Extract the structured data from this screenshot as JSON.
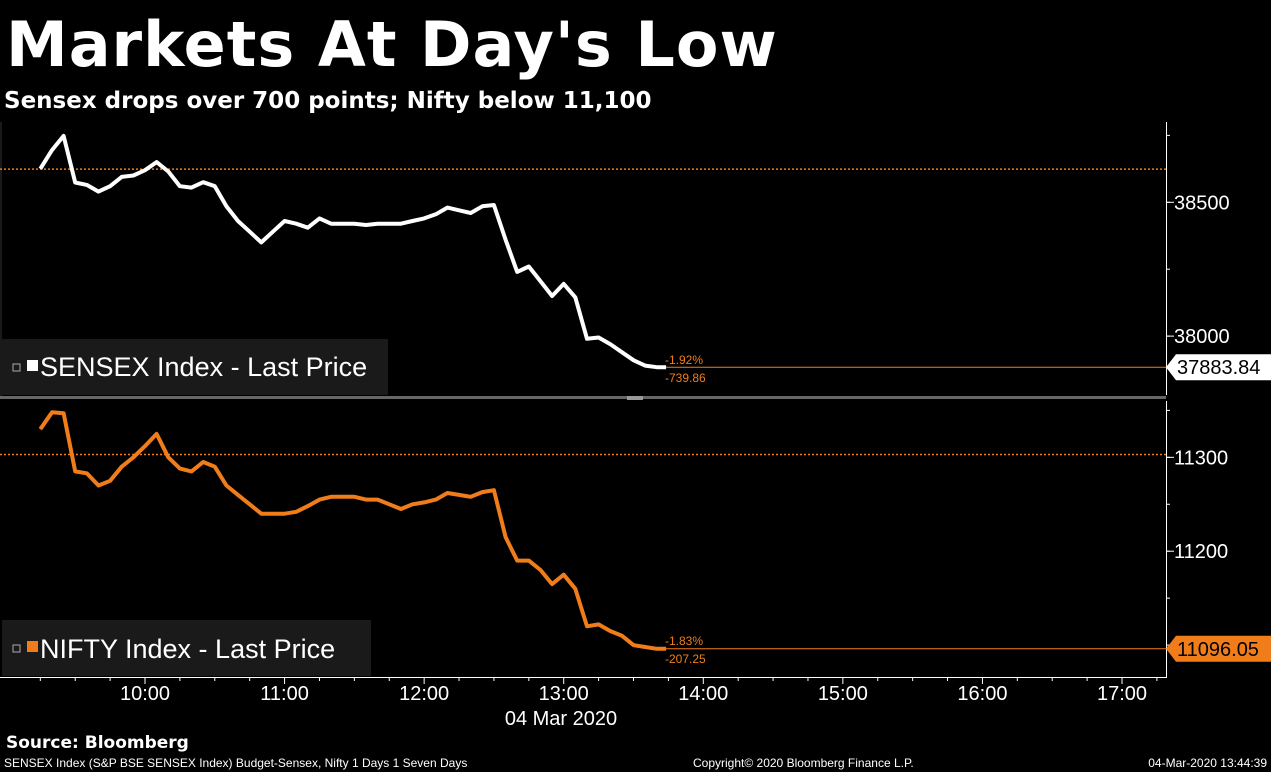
{
  "header": {
    "title": "Markets At Day's Low",
    "subtitle": "Sensex drops over 700 points; Nifty below 11,100"
  },
  "colors": {
    "sensex": "#ffffff",
    "nifty": "#f07d1a",
    "background": "#000000",
    "axis": "#ffffff"
  },
  "footer": {
    "source": "Source: Bloomberg",
    "description": "SENSEX Index (S&P BSE SENSEX Index) Budget-Sensex, Nifty 1 Days 1 Seven Days",
    "copyright": "Copyright© 2020 Bloomberg Finance L.P.",
    "timestamp": "04-Mar-2020 13:44:39"
  },
  "chart_data": [
    {
      "type": "line",
      "title": "",
      "legend": "SENSEX Index - Last Price",
      "legend_placement": "bottom-left",
      "color": "#ffffff",
      "ylim": [
        37780,
        38800
      ],
      "yticks": [
        38000,
        38500
      ],
      "ytick_labels": [
        "38000",
        "38500"
      ],
      "last_price_label": "37883.84",
      "last_price": 37883.84,
      "change_pct": "-1.92%",
      "change_abs": "-739.86",
      "reference_line": 38624,
      "grid": false,
      "x": [
        "09:15",
        "09:20",
        "09:25",
        "09:30",
        "09:35",
        "09:40",
        "09:45",
        "09:50",
        "09:55",
        "10:00",
        "10:05",
        "10:10",
        "10:15",
        "10:20",
        "10:25",
        "10:30",
        "10:35",
        "10:40",
        "10:45",
        "10:50",
        "10:55",
        "11:00",
        "11:05",
        "11:10",
        "11:15",
        "11:20",
        "11:25",
        "11:30",
        "11:35",
        "11:40",
        "11:45",
        "11:50",
        "11:55",
        "12:00",
        "12:05",
        "12:10",
        "12:15",
        "12:20",
        "12:25",
        "12:30",
        "12:35",
        "12:40",
        "12:45",
        "12:50",
        "12:55",
        "13:00",
        "13:05",
        "13:10",
        "13:15",
        "13:20",
        "13:25",
        "13:30",
        "13:35",
        "13:40",
        "13:44"
      ],
      "series": [
        {
          "name": "SENSEX Index - Last Price",
          "values": [
            38625,
            38695,
            38748,
            38574,
            38565,
            38540,
            38560,
            38595,
            38600,
            38620,
            38650,
            38615,
            38560,
            38555,
            38575,
            38560,
            38485,
            38430,
            38390,
            38350,
            38390,
            38430,
            38420,
            38405,
            38440,
            38420,
            38420,
            38420,
            38415,
            38420,
            38420,
            38420,
            38430,
            38440,
            38455,
            38480,
            38470,
            38460,
            38485,
            38490,
            38360,
            38240,
            38260,
            38205,
            38150,
            38195,
            38145,
            37990,
            37995,
            37970,
            37940,
            37910,
            37890,
            37884,
            37884
          ]
        }
      ]
    },
    {
      "type": "line",
      "title": "",
      "legend": "NIFTY Index - Last Price",
      "legend_placement": "bottom-left",
      "color": "#f07d1a",
      "ylim": [
        11066,
        11360
      ],
      "yticks": [
        11200,
        11300
      ],
      "ytick_labels": [
        "11200",
        "11300"
      ],
      "last_price_label": "11096.05",
      "last_price": 11096.05,
      "change_pct": "-1.83%",
      "change_abs": "-207.25",
      "reference_line": 11303,
      "grid": false,
      "x": [
        "10:00",
        "11:00",
        "12:00",
        "13:00",
        "14:00",
        "15:00",
        "16:00",
        "17:00"
      ],
      "xlabel": "04 Mar 2020",
      "points": [
        {
          "t": "09:15",
          "v": 11330
        },
        {
          "t": "09:20",
          "v": 11348
        },
        {
          "t": "09:25",
          "v": 11347
        },
        {
          "t": "09:30",
          "v": 11285
        },
        {
          "t": "09:35",
          "v": 11283
        },
        {
          "t": "09:40",
          "v": 11270
        },
        {
          "t": "09:45",
          "v": 11275
        },
        {
          "t": "09:50",
          "v": 11290
        },
        {
          "t": "09:55",
          "v": 11300
        },
        {
          "t": "10:00",
          "v": 11312
        },
        {
          "t": "10:05",
          "v": 11325
        },
        {
          "t": "10:10",
          "v": 11300
        },
        {
          "t": "10:15",
          "v": 11288
        },
        {
          "t": "10:20",
          "v": 11285
        },
        {
          "t": "10:25",
          "v": 11295
        },
        {
          "t": "10:30",
          "v": 11290
        },
        {
          "t": "10:35",
          "v": 11270
        },
        {
          "t": "10:40",
          "v": 11260
        },
        {
          "t": "10:45",
          "v": 11250
        },
        {
          "t": "10:50",
          "v": 11240
        },
        {
          "t": "10:55",
          "v": 11240
        },
        {
          "t": "11:00",
          "v": 11240
        },
        {
          "t": "11:05",
          "v": 11242
        },
        {
          "t": "11:10",
          "v": 11248
        },
        {
          "t": "11:15",
          "v": 11255
        },
        {
          "t": "11:20",
          "v": 11258
        },
        {
          "t": "11:25",
          "v": 11258
        },
        {
          "t": "11:30",
          "v": 11258
        },
        {
          "t": "11:35",
          "v": 11255
        },
        {
          "t": "11:40",
          "v": 11255
        },
        {
          "t": "11:45",
          "v": 11250
        },
        {
          "t": "11:50",
          "v": 11245
        },
        {
          "t": "11:55",
          "v": 11250
        },
        {
          "t": "12:00",
          "v": 11252
        },
        {
          "t": "12:05",
          "v": 11255
        },
        {
          "t": "12:10",
          "v": 11262
        },
        {
          "t": "12:15",
          "v": 11260
        },
        {
          "t": "12:20",
          "v": 11258
        },
        {
          "t": "12:25",
          "v": 11263
        },
        {
          "t": "12:30",
          "v": 11265
        },
        {
          "t": "12:35",
          "v": 11215
        },
        {
          "t": "12:40",
          "v": 11190
        },
        {
          "t": "12:45",
          "v": 11190
        },
        {
          "t": "12:50",
          "v": 11180
        },
        {
          "t": "12:55",
          "v": 11165
        },
        {
          "t": "13:00",
          "v": 11175
        },
        {
          "t": "13:05",
          "v": 11160
        },
        {
          "t": "13:10",
          "v": 11120
        },
        {
          "t": "13:15",
          "v": 11122
        },
        {
          "t": "13:20",
          "v": 11115
        },
        {
          "t": "13:25",
          "v": 11110
        },
        {
          "t": "13:30",
          "v": 11100
        },
        {
          "t": "13:35",
          "v": 11098
        },
        {
          "t": "13:40",
          "v": 11096
        },
        {
          "t": "13:44",
          "v": 11096
        }
      ]
    }
  ]
}
